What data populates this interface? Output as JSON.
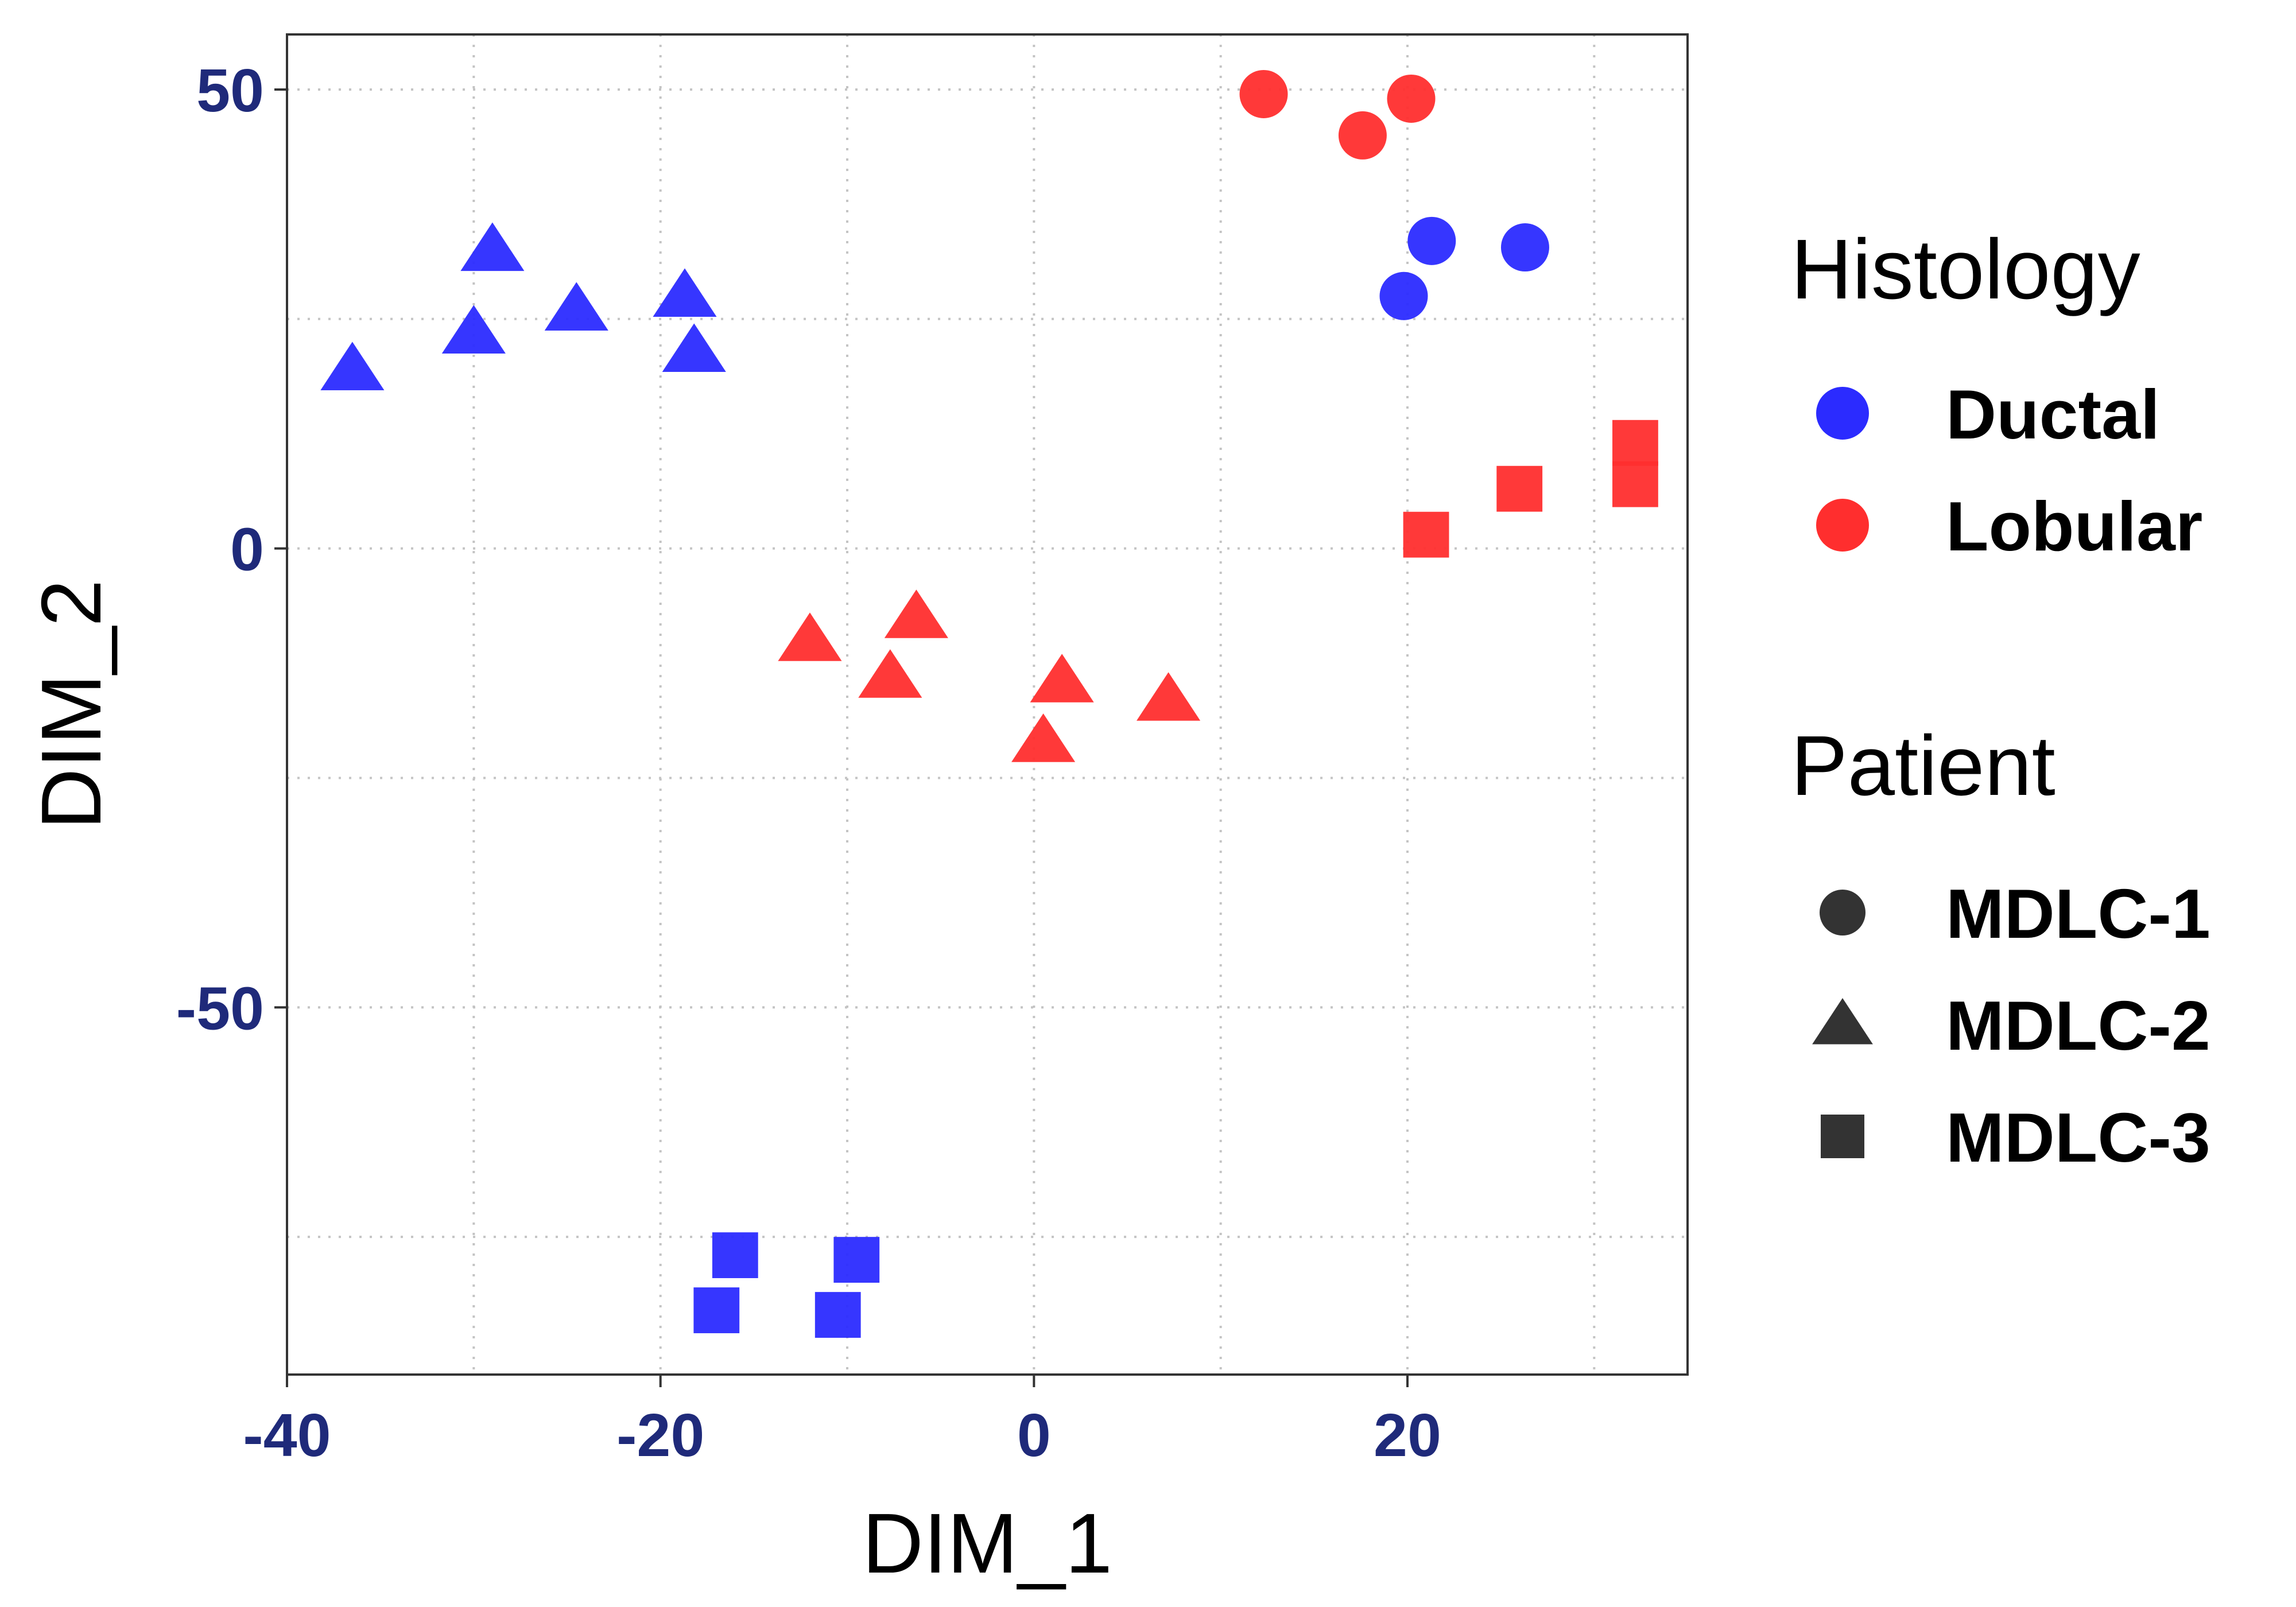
{
  "chart_data": {
    "type": "scatter",
    "xlabel": "DIM_1",
    "ylabel": "DIM_2",
    "xlim": [
      -40,
      35
    ],
    "ylim": [
      -90,
      56
    ],
    "x_ticks": [
      -40,
      -20,
      0,
      20
    ],
    "y_ticks": [
      -50,
      0,
      50
    ],
    "grid": true,
    "legend_position": "right",
    "colors": {
      "Ductal": "#2b2bff",
      "Lobular": "#ff2e2e",
      "shape_key": "#333333"
    },
    "legends": [
      {
        "title": "Histology",
        "kind": "color",
        "entries": [
          {
            "label": "Ductal",
            "color": "#2b2bff"
          },
          {
            "label": "Lobular",
            "color": "#ff2e2e"
          }
        ]
      },
      {
        "title": "Patient",
        "kind": "shape",
        "entries": [
          {
            "label": "MDLC-1",
            "shape": "circle"
          },
          {
            "label": "MDLC-2",
            "shape": "triangle"
          },
          {
            "label": "MDLC-3",
            "shape": "square"
          }
        ]
      }
    ],
    "series": [
      {
        "histology": "Lobular",
        "patient": "MDLC-1",
        "points": [
          [
            12.3,
            49.5
          ],
          [
            17.6,
            45.0
          ],
          [
            20.2,
            49.0
          ]
        ]
      },
      {
        "histology": "Ductal",
        "patient": "MDLC-1",
        "points": [
          [
            21.3,
            33.5
          ],
          [
            26.3,
            32.8
          ],
          [
            19.8,
            27.5
          ]
        ]
      },
      {
        "histology": "Ductal",
        "patient": "MDLC-2",
        "points": [
          [
            -36.5,
            19.5
          ],
          [
            -29.0,
            32.5
          ],
          [
            -30.0,
            23.5
          ],
          [
            -24.5,
            26.0
          ],
          [
            -18.7,
            27.5
          ],
          [
            -18.2,
            21.5
          ]
        ]
      },
      {
        "histology": "Lobular",
        "patient": "MDLC-2",
        "points": [
          [
            -12.0,
            -10.0
          ],
          [
            -6.3,
            -7.5
          ],
          [
            -7.7,
            -14.0
          ],
          [
            0.5,
            -21.0
          ],
          [
            1.5,
            -14.5
          ],
          [
            7.2,
            -16.5
          ]
        ]
      },
      {
        "histology": "Lobular",
        "patient": "MDLC-3",
        "points": [
          [
            21.0,
            1.5
          ],
          [
            26.0,
            6.5
          ],
          [
            32.2,
            11.5
          ],
          [
            32.2,
            7.0
          ]
        ]
      },
      {
        "histology": "Ductal",
        "patient": "MDLC-3",
        "points": [
          [
            -16.0,
            -77.0
          ],
          [
            -9.5,
            -77.5
          ],
          [
            -17.0,
            -83.0
          ],
          [
            -10.5,
            -83.5
          ]
        ]
      }
    ]
  }
}
